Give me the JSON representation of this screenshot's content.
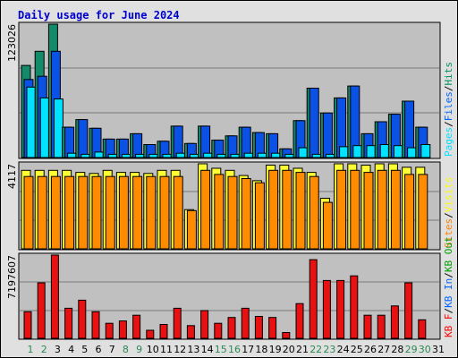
{
  "chart_data": {
    "type": "bar",
    "title": "Daily usage for June 2024",
    "categories": [
      "1",
      "2",
      "3",
      "4",
      "5",
      "6",
      "7",
      "8",
      "9",
      "10",
      "11",
      "12",
      "13",
      "14",
      "15",
      "16",
      "17",
      "18",
      "19",
      "20",
      "21",
      "22",
      "23",
      "24",
      "25",
      "26",
      "27",
      "28",
      "29",
      "30",
      "31"
    ],
    "weekend_days": [
      "1",
      "2",
      "8",
      "9",
      "15",
      "16",
      "22",
      "23",
      "29",
      "30"
    ],
    "panels": [
      {
        "name": "hits-files-pages",
        "y_max_label": "123026",
        "ylim": [
          0,
          123026
        ],
        "legend": [
          {
            "text": "Pages",
            "color": "#00e0ff"
          },
          {
            "text": "/",
            "color": "#000000"
          },
          {
            "text": "Files",
            "color": "#0064ff"
          },
          {
            "text": "/",
            "color": "#000000"
          },
          {
            "text": "Hits",
            "color": "#009164"
          }
        ],
        "series": [
          {
            "name": "Hits",
            "color": "#138a6a",
            "values": [
              85000,
              98000,
              123026,
              28000,
              35000,
              27000,
              17000,
              17000,
              22000,
              12000,
              15000,
              29000,
              13000,
              29000,
              16000,
              20000,
              28000,
              23000,
              22000,
              8000,
              34000,
              64000,
              41000,
              55000,
              66000,
              22000,
              33000,
              40000,
              52000,
              28000,
              0
            ]
          },
          {
            "name": "Files",
            "color": "#0a52e6",
            "values": [
              72000,
              75000,
              98000,
              28000,
              35000,
              27000,
              17000,
              17000,
              22000,
              12000,
              15000,
              29000,
              13000,
              29000,
              16000,
              20000,
              28000,
              23000,
              22000,
              8000,
              34000,
              64000,
              41000,
              55000,
              66000,
              22000,
              33000,
              40000,
              52000,
              28000,
              0
            ]
          },
          {
            "name": "Pages",
            "color": "#00e2ff",
            "values": [
              65000,
              55000,
              54000,
              4000,
              3000,
              5000,
              3000,
              3000,
              3000,
              3000,
              3000,
              4000,
              3000,
              4000,
              3000,
              3000,
              4000,
              4000,
              4000,
              3000,
              9000,
              3000,
              3000,
              10000,
              11000,
              11000,
              12000,
              11000,
              9000,
              12000,
              0
            ]
          }
        ]
      },
      {
        "name": "visits-sites",
        "y_max_label": "4117",
        "ylim": [
          0,
          4117
        ],
        "legend": [
          {
            "text": "Sites",
            "color": "#ff8000"
          },
          {
            "text": "/",
            "color": "#000000"
          },
          {
            "text": "Visits",
            "color": "#ffff00"
          }
        ],
        "series": [
          {
            "name": "Visits",
            "color": "#ffff33",
            "values": [
              3800,
              3800,
              3800,
              3800,
              3700,
              3650,
              3800,
              3700,
              3700,
              3650,
              3800,
              3800,
              1900,
              4117,
              3900,
              3800,
              3550,
              3300,
              4050,
              4050,
              3900,
              3700,
              2450,
              4117,
              4117,
              4050,
              4117,
              4117,
              3950,
              3950,
              0
            ]
          },
          {
            "name": "Sites",
            "color": "#ff8c00",
            "values": [
              3500,
              3500,
              3500,
              3500,
              3500,
              3500,
              3500,
              3500,
              3500,
              3500,
              3500,
              3500,
              1850,
              3800,
              3600,
              3500,
              3400,
              3200,
              3800,
              3800,
              3700,
              3500,
              2250,
              3800,
              3800,
              3700,
              3800,
              3800,
              3600,
              3600,
              0
            ]
          }
        ]
      },
      {
        "name": "kbytes",
        "y_max_label": "7197607",
        "ylim": [
          0,
          7197607
        ],
        "legend": [
          {
            "text": "KB F",
            "color": "#ff0000"
          },
          {
            "text": "/",
            "color": "#000000"
          },
          {
            "text": "KB In",
            "color": "#0064ff"
          },
          {
            "text": "/",
            "color": "#000000"
          },
          {
            "text": "KB Out",
            "color": "#00a000"
          }
        ],
        "series": [
          {
            "name": "KB F",
            "color": "#e81010",
            "values": [
              2300000,
              4800000,
              7197607,
              2600000,
              3300000,
              2300000,
              1300000,
              1500000,
              2000000,
              700000,
              1200000,
              2600000,
              1100000,
              2400000,
              1300000,
              1800000,
              2600000,
              1900000,
              1800000,
              500000,
              3000000,
              6800000,
              5000000,
              5000000,
              5400000,
              2000000,
              2000000,
              2800000,
              4800000,
              1600000,
              0
            ]
          }
        ]
      }
    ]
  }
}
